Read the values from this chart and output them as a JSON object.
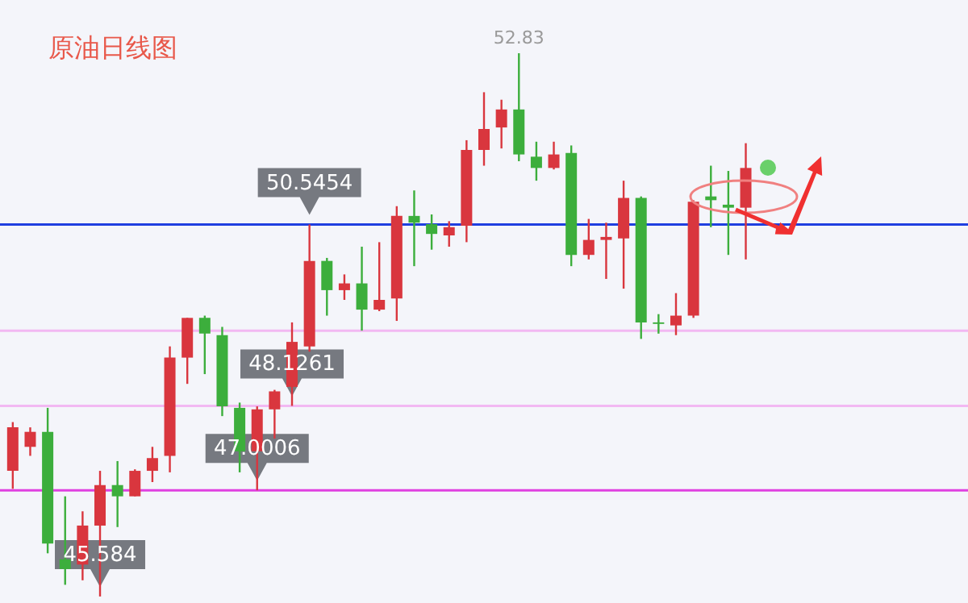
{
  "chart_data": {
    "type": "candlestick",
    "title": "原油日线图",
    "categories": [
      null,
      null,
      null,
      null,
      null,
      null,
      null,
      null,
      null,
      null,
      null,
      null,
      null,
      null,
      null,
      null,
      null,
      null,
      null,
      null,
      null,
      null,
      null,
      null,
      null,
      null,
      null,
      null,
      null,
      null,
      null,
      null,
      null,
      null,
      null,
      null,
      null,
      null,
      null,
      null,
      null,
      null,
      null
    ],
    "ohlc": [
      [
        47.26,
        47.91,
        47.02,
        47.84
      ],
      [
        47.58,
        47.84,
        47.46,
        47.78
      ],
      [
        47.78,
        48.1,
        46.16,
        46.29
      ],
      [
        46.08,
        46.92,
        45.74,
        45.95
      ],
      [
        46.01,
        46.72,
        45.8,
        46.53
      ],
      [
        46.53,
        47.26,
        45.584,
        47.07
      ],
      [
        47.07,
        47.39,
        46.51,
        46.92
      ],
      [
        46.92,
        47.28,
        46.92,
        47.26
      ],
      [
        47.26,
        47.58,
        47.11,
        47.43
      ],
      [
        47.46,
        48.92,
        47.24,
        48.77
      ],
      [
        48.77,
        49.3,
        48.42,
        49.3
      ],
      [
        49.3,
        49.33,
        48.55,
        49.09
      ],
      [
        49.07,
        49.18,
        47.99,
        48.12
      ],
      [
        48.1,
        48.17,
        47.24,
        47.52
      ],
      [
        47.52,
        48.12,
        47.0006,
        48.08
      ],
      [
        48.08,
        48.34,
        47.69,
        48.32
      ],
      [
        48.38,
        49.24,
        48.1261,
        48.98
      ],
      [
        48.92,
        50.5454,
        48.85,
        50.06
      ],
      [
        50.06,
        50.1,
        49.33,
        49.67
      ],
      [
        49.67,
        49.88,
        49.54,
        49.76
      ],
      [
        49.76,
        50.25,
        49.13,
        49.41
      ],
      [
        49.41,
        50.31,
        49.39,
        49.54
      ],
      [
        49.56,
        50.79,
        49.26,
        50.66
      ],
      [
        50.66,
        51.0,
        49.99,
        50.57
      ],
      [
        50.55,
        50.68,
        50.21,
        50.42
      ],
      [
        50.4,
        50.59,
        50.25,
        50.51
      ],
      [
        50.53,
        51.67,
        50.31,
        51.54
      ],
      [
        51.54,
        52.31,
        51.33,
        51.82
      ],
      [
        51.84,
        52.21,
        51.56,
        52.08
      ],
      [
        52.08,
        52.83,
        51.39,
        51.48
      ],
      [
        51.45,
        51.65,
        51.13,
        51.3
      ],
      [
        51.3,
        51.65,
        51.28,
        51.48
      ],
      [
        51.5,
        51.6,
        49.99,
        50.14
      ],
      [
        50.14,
        50.62,
        50.08,
        50.34
      ],
      [
        50.34,
        50.57,
        49.82,
        50.38
      ],
      [
        50.36,
        51.13,
        49.69,
        50.9
      ],
      [
        50.9,
        50.92,
        49.02,
        49.24
      ],
      [
        49.24,
        49.35,
        49.09,
        49.22
      ],
      [
        49.2,
        49.63,
        49.07,
        49.33
      ],
      [
        49.33,
        50.87,
        49.3,
        50.85
      ],
      [
        50.92,
        51.33,
        50.51,
        50.87
      ],
      [
        50.81,
        51.26,
        50.14,
        50.77
      ],
      [
        50.77,
        51.63,
        50.08,
        51.3
      ]
    ],
    "colors": [
      "#d9363e",
      "#d9363e",
      "#3cae3c",
      "#3cae3c",
      "#d9363e",
      "#d9363e",
      "#3cae3c",
      "#d9363e",
      "#d9363e",
      "#d9363e",
      "#d9363e",
      "#3cae3c",
      "#3cae3c",
      "#3cae3c",
      "#d9363e",
      "#d9363e",
      "#d9363e",
      "#d9363e",
      "#3cae3c",
      "#d9363e",
      "#3cae3c",
      "#d9363e",
      "#d9363e",
      "#3cae3c",
      "#3cae3c",
      "#d9363e",
      "#d9363e",
      "#d9363e",
      "#d9363e",
      "#3cae3c",
      "#3cae3c",
      "#d9363e",
      "#3cae3c",
      "#d9363e",
      "#d9363e",
      "#d9363e",
      "#3cae3c",
      "#3cae3c",
      "#d9363e",
      "#d9363e",
      "#3cae3c",
      "#3cae3c",
      "#d9363e"
    ],
    "ref_lines": [
      {
        "axis": "y",
        "value": 50.5454,
        "color": "#1f3fe0"
      },
      {
        "axis": "y",
        "value": 49.13,
        "color": "#f2b8f2"
      },
      {
        "axis": "y",
        "value": 48.1261,
        "color": "#f2b8f2"
      },
      {
        "axis": "y",
        "value": 47.0006,
        "color": "#e040e0"
      }
    ],
    "annotations": [
      {
        "text": "52.83",
        "y": 52.83
      },
      {
        "text": "50.5454",
        "y": 50.5454
      },
      {
        "text": "48.1261",
        "y": 48.1261
      },
      {
        "text": "47.0006",
        "y": 47.0006
      },
      {
        "text": "45.584",
        "y": 45.584
      }
    ]
  }
}
